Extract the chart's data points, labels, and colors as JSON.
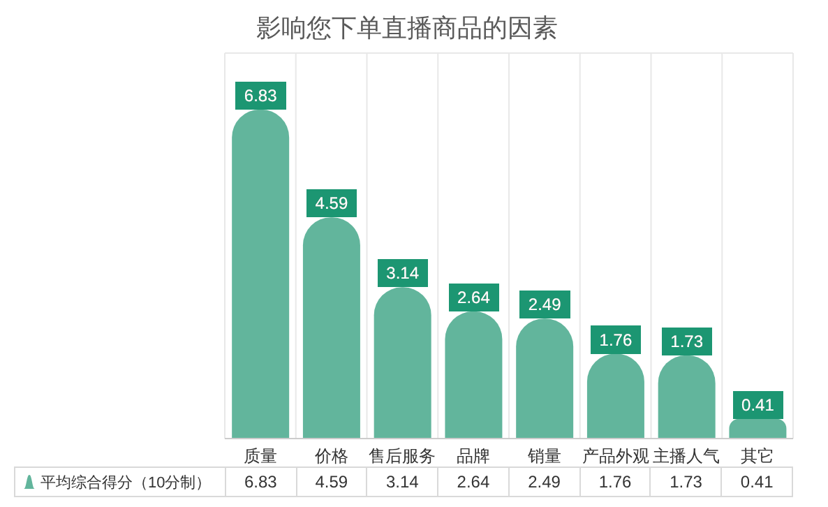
{
  "chart_data": {
    "type": "bar",
    "title": "影响您下单直播商品的因素",
    "categories": [
      "质量",
      "价格",
      "售后服务",
      "品牌",
      "销量",
      "产品外观",
      "主播人气",
      "其它"
    ],
    "series": [
      {
        "name": "平均综合得分（10分制）",
        "color": "#62b59c",
        "values": [
          6.83,
          4.59,
          3.14,
          2.64,
          2.49,
          1.76,
          1.73,
          0.41
        ],
        "value_labels": [
          "6.83",
          "4.59",
          "3.14",
          "2.64",
          "2.49",
          "1.76",
          "1.73",
          "0.41"
        ]
      }
    ],
    "annotations": [
      "6.83",
      "4.59",
      "3.14",
      "2.64",
      "2.49",
      "1.76",
      "1.73",
      "0.41"
    ],
    "tick_labels": "x",
    "grid": true,
    "legend": "bottom left"
  }
}
